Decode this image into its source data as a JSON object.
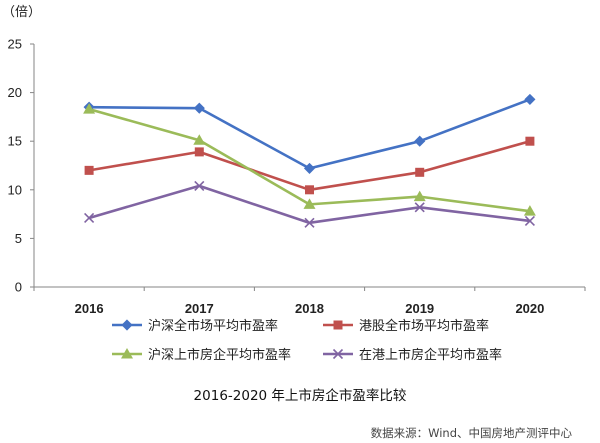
{
  "chart_data": {
    "type": "line",
    "unit_label": "（倍）",
    "categories": [
      "2016",
      "2017",
      "2018",
      "2019",
      "2020"
    ],
    "ylim": [
      0,
      25
    ],
    "yticks": [
      0,
      5,
      10,
      15,
      20,
      25
    ],
    "grid": false,
    "legend_position": "bottom",
    "series": [
      {
        "name": "沪深全市场平均市盈率",
        "values": [
          18.5,
          18.4,
          12.2,
          15.0,
          19.3
        ],
        "color": "#4472C4",
        "marker": "diamond"
      },
      {
        "name": "港股全市场平均市盈率",
        "values": [
          12.0,
          13.9,
          10.0,
          11.8,
          15.0
        ],
        "color": "#C0504D",
        "marker": "square"
      },
      {
        "name": "沪深上市房企平均市盈率",
        "values": [
          18.3,
          15.1,
          8.5,
          9.3,
          7.8
        ],
        "color": "#9BBB59",
        "marker": "triangle"
      },
      {
        "name": "在港上市房企平均市盈率",
        "values": [
          7.1,
          10.4,
          6.6,
          8.2,
          6.8
        ],
        "color": "#8064A2",
        "marker": "x"
      }
    ],
    "caption": "2016-2020 年上市房企市盈率比较",
    "source": "数据来源：Wind、中国房地产测评中心"
  }
}
